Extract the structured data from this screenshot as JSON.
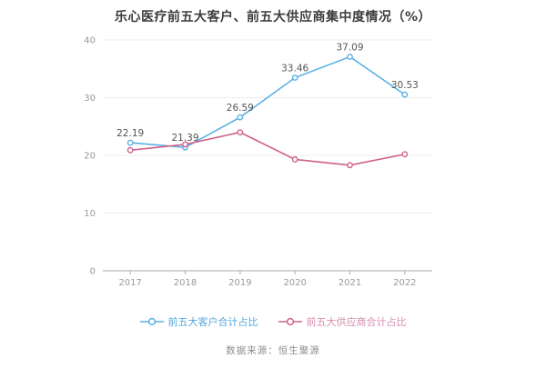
{
  "source_note": "数据来源：恒生聚源",
  "chart_data": {
    "type": "line",
    "title": "乐心医疗前五大客户、前五大供应商集中度情况（%）",
    "categories": [
      "2017",
      "2018",
      "2019",
      "2020",
      "2021",
      "2022"
    ],
    "series": [
      {
        "name": "前五大客户合计占比",
        "values": [
          22.19,
          21.39,
          26.59,
          33.46,
          37.09,
          30.53
        ],
        "data_labels": [
          "22.19",
          "21.39",
          "26.59",
          "33.46",
          "37.09",
          "30.53"
        ],
        "show_labels": true,
        "color": "#58b0e3",
        "legend_text_color": "#58a8dc"
      },
      {
        "name": "前五大供应商合计占比",
        "values": [
          20.9,
          21.9,
          24.0,
          19.3,
          18.3,
          20.2
        ],
        "show_labels": false,
        "color": "#d0608a",
        "legend_text_color": "#d48fae"
      }
    ],
    "xlabel": "",
    "ylabel": "",
    "ylim": [
      0,
      40
    ],
    "yticks": [
      0,
      10,
      20,
      30,
      40
    ],
    "grid": true,
    "legend_position": "bottom",
    "marker": "hollow-circle",
    "colors": {
      "grid_line": "#ececec",
      "axis_line": "#aaaaaa",
      "tick_label": "#999999",
      "data_label": "#555555",
      "title_text": "#3d3d3d",
      "source_text": "#8c8c8c"
    }
  }
}
